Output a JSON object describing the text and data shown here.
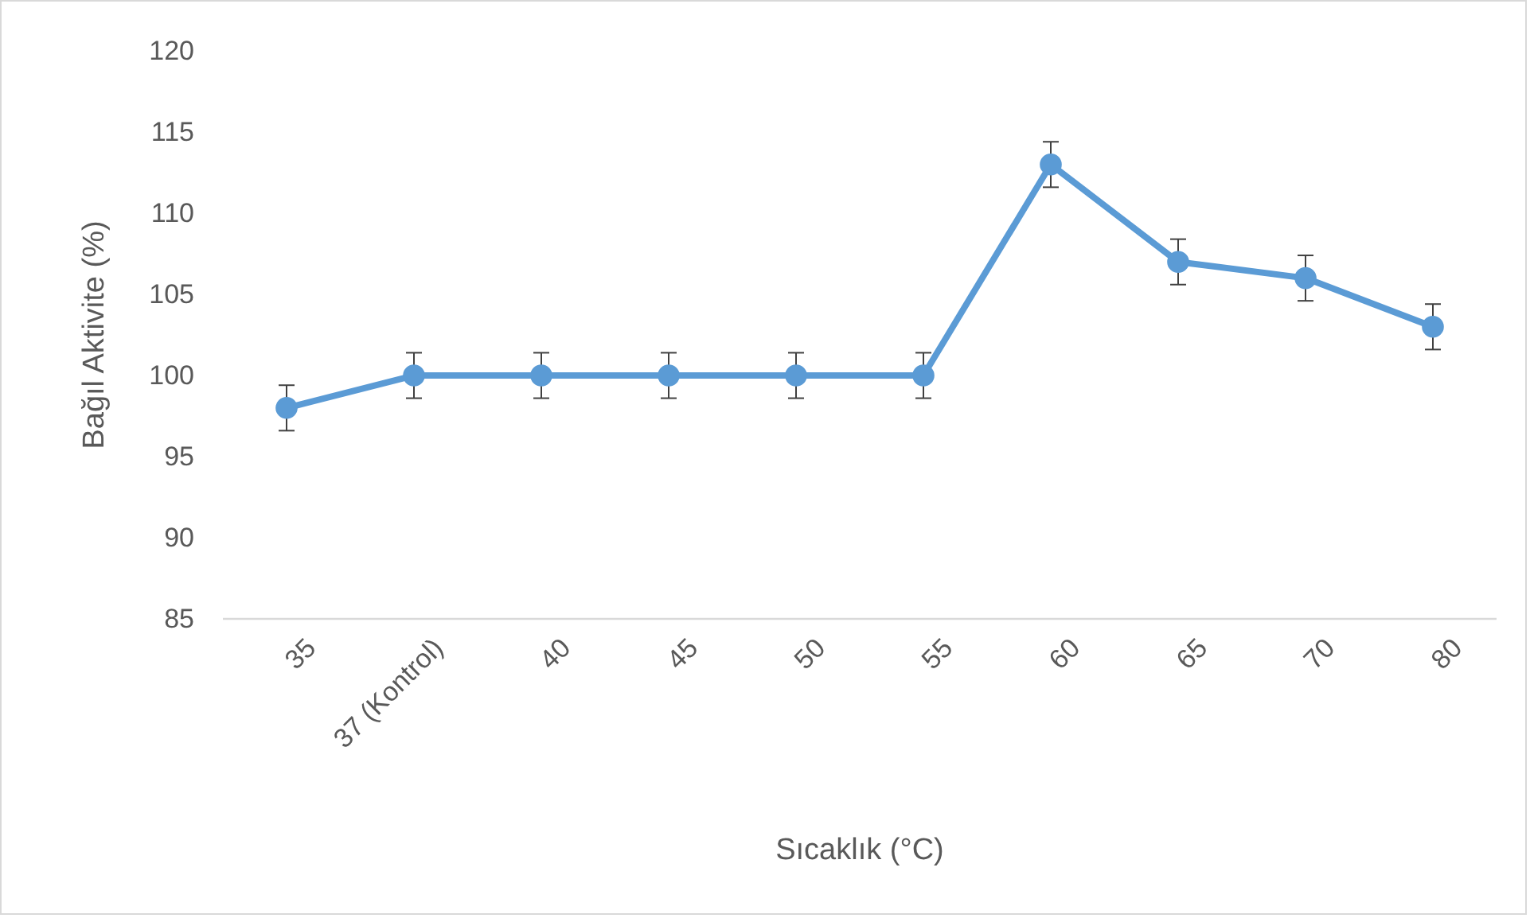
{
  "chart_data": {
    "type": "line",
    "xlabel": "Sıcaklık (°C)",
    "ylabel": "Bağıl Aktivite (%)",
    "categories": [
      "35",
      "37 (Kontrol)",
      "40",
      "45",
      "50",
      "55",
      "60",
      "65",
      "70",
      "80"
    ],
    "series": [
      {
        "color": "#5b9bd5",
        "values": [
          98,
          100,
          100,
          100,
          100,
          100,
          113,
          107,
          106,
          103
        ],
        "errors": [
          1.4,
          1.4,
          1.4,
          1.4,
          1.4,
          1.4,
          1.4,
          1.4,
          1.4,
          1.4
        ]
      }
    ],
    "ylim": [
      85,
      120
    ],
    "yticks": [
      85,
      90,
      95,
      100,
      105,
      110,
      115,
      120
    ],
    "grid": false,
    "marker": "circle",
    "line_style": "solid"
  }
}
